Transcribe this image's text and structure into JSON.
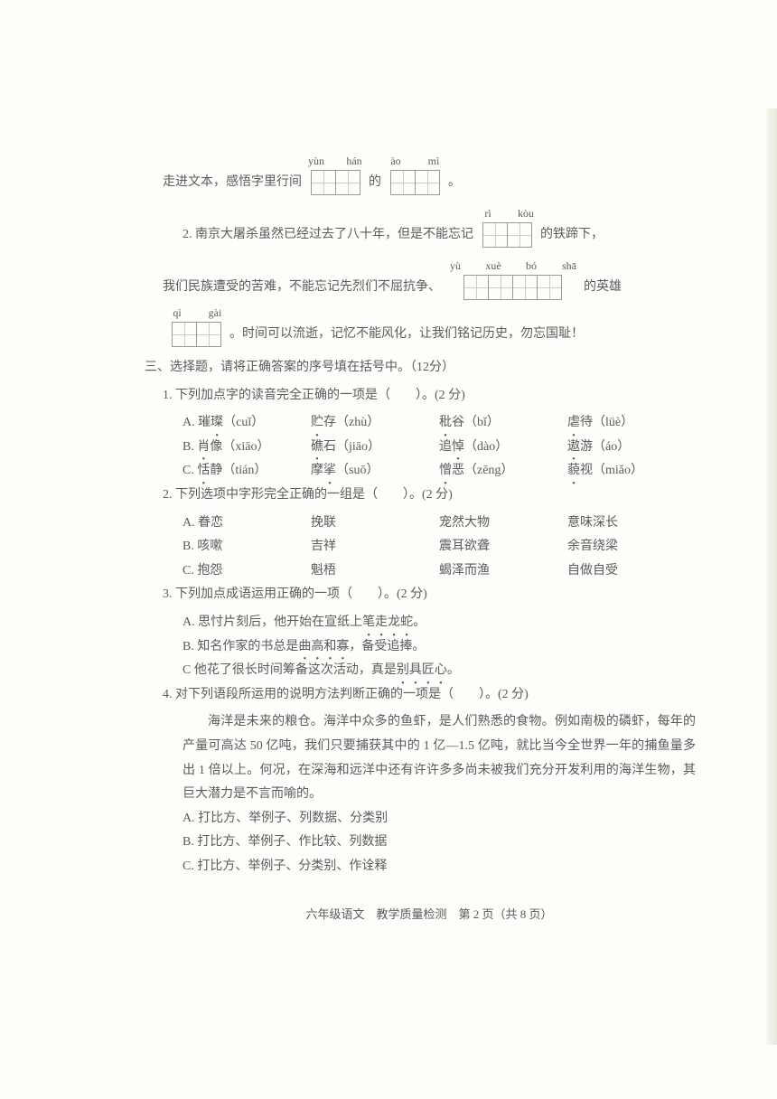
{
  "fillIn": {
    "line1_pre": "走进文本，感悟字里行间",
    "py1": [
      "yùn",
      "hán"
    ],
    "mid1": "的",
    "py2": [
      "ào",
      "mì"
    ],
    "end1": "。",
    "q2_pre": "2. 南京大屠杀虽然已经过去了八十年，但是不能忘记",
    "py3": [
      "rì",
      "kòu"
    ],
    "q2_post": "的铁蹄下，",
    "line3_pre": "我们民族遭受的苦难，不能忘记先烈们不屈抗争、",
    "py4": [
      "yù",
      "xuè",
      "bó",
      "shā"
    ],
    "line3_post": "的英雄",
    "py5": [
      "qì",
      "gài"
    ],
    "line4_post": "。时间可以流逝，记忆不能风化，让我们铭记历史，勿忘国耻！"
  },
  "section3": {
    "heading": "三、选择题，请将正确答案的序号填在括号中。（12分）",
    "q1": {
      "stem": "1. 下列加点字的读音完全正确的一项是（　　）。(2 分)",
      "rows": [
        {
          "a": "A. 璀璨（cuǐ）",
          "b": "贮存（zhù）",
          "c": "秕谷（bǐ）",
          "d": "虐待（lüè）",
          "dotA": "璨",
          "dotB": "贮",
          "dotC": "秕",
          "dotD": "虐"
        },
        {
          "a": "B. 肖像（xiāo）",
          "b": "礁石（jiāo）",
          "c": "追悼（dào）",
          "d": "遨游（áo）",
          "dotA": "肖",
          "dotB": "礁",
          "dotC": "悼",
          "dotD": "遨"
        },
        {
          "a": "C. 恬静（tián）",
          "b": "摩挲（suō）",
          "c": "憎恶（zēng）",
          "d": "藐视（miǎo）",
          "dotA": "恬",
          "dotB": "挲",
          "dotC": "憎",
          "dotD": "藐"
        }
      ]
    },
    "q2": {
      "stem": "2. 下列选项中字形完全正确的一组是（　　）。(2 分)",
      "rows": [
        {
          "a": "A. 眷恋",
          "b": "挽联",
          "c": "宠然大物",
          "d": "意味深长"
        },
        {
          "a": "B. 咳嗽",
          "b": "吉祥",
          "c": "震耳欲聋",
          "d": "余音绕梁"
        },
        {
          "a": "C. 抱怨",
          "b": "魁梧",
          "c": "蝎泽而渔",
          "d": "自做自受"
        }
      ]
    },
    "q3": {
      "stem": "3. 下列加点成语运用正确的一项（　　）。(2 分)",
      "opts": [
        {
          "pre": "A. 思忖片刻后，他开始在宣纸上",
          "idiom": "笔走龙蛇",
          "post": "。"
        },
        {
          "pre": "B. 知名作家的书总是",
          "idiom": "曲高和寡",
          "post": "，备受追捧。"
        },
        {
          "pre": "C 他花了很长时间筹备这次活动，真是",
          "idiom": "别具匠心",
          "post": "。"
        }
      ]
    },
    "q4": {
      "stem": "4. 对下列语段所运用的说明方法判断正确的一项是（　　）。(2 分)",
      "passage": "海洋是未来的粮仓。海洋中众多的鱼虾，是人们熟悉的食物。例如南极的磷虾，每年的产量可高达 50 亿吨，我们只要捕获其中的 1 亿—1.5 亿吨，就比当今全世界一年的捕鱼量多出 1 倍以上。何况，在深海和远洋中还有许许多多尚未被我们充分开发利用的海洋生物，其巨大潜力是不言而喻的。",
      "opts": [
        "A. 打比方、举例子、列数据、分类别",
        "B. 打比方、举例子、作比较、列数据",
        "C. 打比方、举例子、分类别、作诠释"
      ]
    }
  },
  "footer": "六年级语文　教学质量检测　第 2 页（共 8 页）"
}
